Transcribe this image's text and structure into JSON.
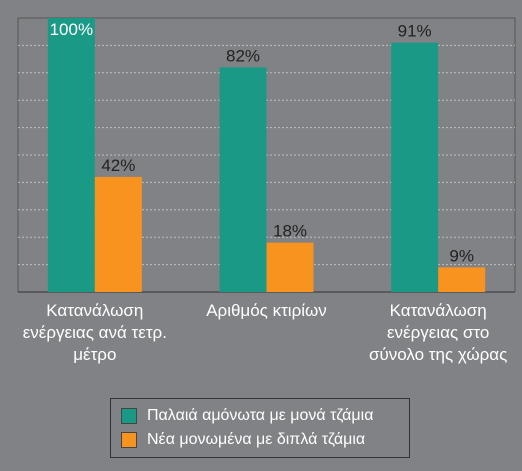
{
  "chart_data": {
    "type": "bar",
    "categories": [
      "Κατανάλωση ενέργειας ανά τετρ. μέτρο",
      "Αριθμός κτιρίων",
      "Κατανάλωση ενέργειας στο σύνολο της χώρας"
    ],
    "series": [
      {
        "name": "Παλαιά αμόνωτα με μονά τζάμια",
        "color": "#1b9987",
        "values": [
          100,
          82,
          91
        ],
        "value_labels": [
          "100%",
          "82%",
          "91%"
        ]
      },
      {
        "name": "Νέα μονωμένα με διπλά τζάμια",
        "color": "#f7931e",
        "values": [
          42,
          18,
          9
        ],
        "value_labels": [
          "42%",
          "18%",
          "9%"
        ]
      }
    ],
    "ylim": [
      0,
      100
    ],
    "yticks": [
      10,
      20,
      30,
      40,
      50,
      60,
      70,
      80,
      90
    ],
    "grid": true,
    "legend": "bottom"
  }
}
